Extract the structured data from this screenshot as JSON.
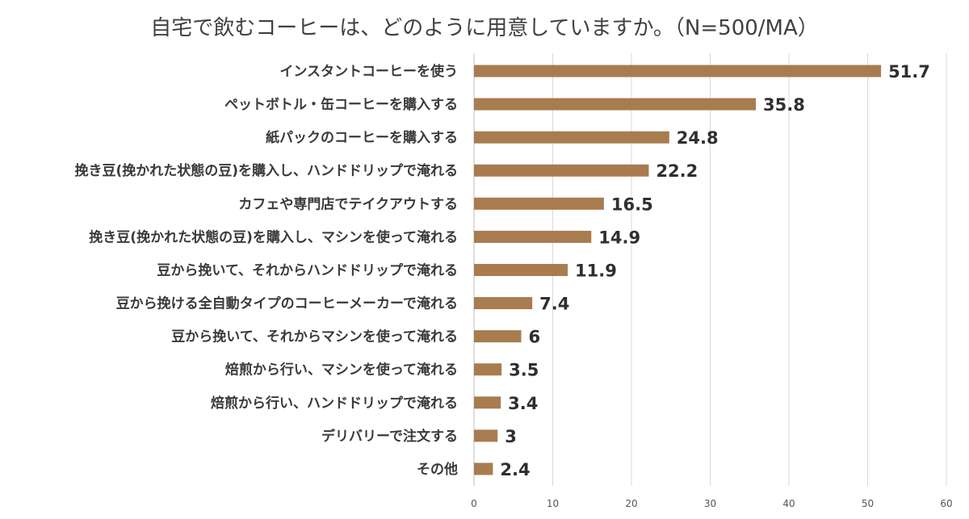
{
  "chart_data": {
    "type": "bar",
    "orientation": "horizontal",
    "title": "自宅で飲むコーヒーは、どのように用意していますか。（N=500/MA）",
    "categories": [
      "インスタントコーヒーを使う",
      "ペットボトル・缶コーヒーを購入する",
      "紙パックのコーヒーを購入する",
      "挽き豆(挽かれた状態の豆)を購入し、ハンドドリップで淹れる",
      "カフェや専門店でテイクアウトする",
      "挽き豆(挽かれた状態の豆)を購入し、マシンを使って淹れる",
      "豆から挽いて、それからハンドドリップで淹れる",
      "豆から挽ける全自動タイプのコーヒーメーカーで淹れる",
      "豆から挽いて、それからマシンを使って淹れる",
      "焙煎から行い、マシンを使って淹れる",
      "焙煎から行い、ハンドドリップで淹れる",
      "デリバリーで注文する",
      "その他"
    ],
    "values": [
      51.7,
      35.8,
      24.8,
      22.2,
      16.5,
      14.9,
      11.9,
      7.4,
      6,
      3.5,
      3.4,
      3,
      2.4
    ],
    "value_labels": [
      "51.7",
      "35.8",
      "24.8",
      "22.2",
      "16.5",
      "14.9",
      "11.9",
      "7.4",
      "6",
      "3.5",
      "3.4",
      "3",
      "2.4"
    ],
    "xlim": [
      0,
      60
    ],
    "xticks": [
      "0",
      "10",
      "20",
      "30",
      "40",
      "50",
      "60"
    ],
    "xlabel": "",
    "ylabel": "",
    "grid": true,
    "legend": "none",
    "bar_color": "#a87c4f"
  }
}
